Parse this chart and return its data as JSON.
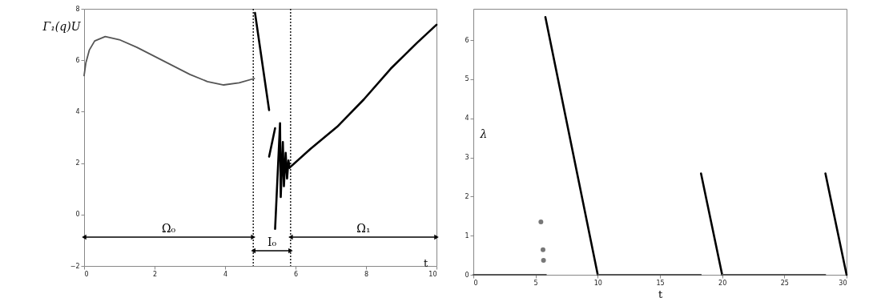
{
  "chart_data": [
    {
      "type": "line",
      "xlabel": "t",
      "ylabel": "Γ₁(q)U",
      "xlim": [
        0,
        10
      ],
      "ylim": [
        -2,
        8
      ],
      "xticks": [
        0,
        2,
        4,
        6,
        8,
        10
      ],
      "yticks": [
        -2,
        0,
        2,
        4,
        6,
        8
      ],
      "line_style": "solid",
      "series": [
        {
          "color": "#555555",
          "x": [
            0,
            0.05,
            0.15,
            0.3,
            0.6,
            1,
            1.5,
            2,
            2.5,
            3,
            3.5,
            3.96,
            4.4,
            4.83
          ],
          "values": [
            5.4,
            5.9,
            6.4,
            6.75,
            6.92,
            6.8,
            6.5,
            6.15,
            5.8,
            5.45,
            5.17,
            5.04,
            5.12,
            5.29
          ]
        },
        {
          "color": "#000000",
          "x": [
            4.85,
            5.25
          ],
          "values": [
            7.84,
            4.06
          ]
        },
        {
          "color": "#000000",
          "x": [
            5.25,
            5.42
          ],
          "values": [
            2.25,
            3.36
          ]
        },
        {
          "color": "#000000",
          "x": [
            5.42,
            5.56,
            5.58,
            5.64,
            5.67,
            5.72,
            5.76,
            5.8,
            5.83
          ],
          "values": [
            -0.56,
            3.55,
            0.68,
            2.82,
            1.1,
            2.4,
            1.4,
            2.1,
            1.82
          ]
        },
        {
          "color": "#000000",
          "x": [
            5.83,
            6.42,
            7.18,
            7.94,
            8.7,
            9.45,
            10
          ],
          "values": [
            1.82,
            2.55,
            3.41,
            4.48,
            5.67,
            6.68,
            7.38
          ]
        }
      ],
      "ref_lines": [
        {
          "axis": "x",
          "value": 4.8,
          "line_style": "dotted",
          "color": "#000000"
        },
        {
          "axis": "x",
          "value": 5.86,
          "line_style": "dotted",
          "color": "#000000"
        }
      ],
      "annotations": [
        "Ω₀",
        "I₀",
        "Ω₁"
      ]
    },
    {
      "type": "line",
      "xlabel": "t",
      "ylabel": "λ",
      "xlim": [
        0,
        30
      ],
      "ylim": [
        0,
        6.8
      ],
      "xticks": [
        0,
        5,
        10,
        15,
        20,
        25,
        30
      ],
      "yticks": [
        0,
        1,
        2,
        3,
        4,
        5,
        6
      ],
      "line_style": "solid",
      "series": [
        {
          "color": "#555555",
          "x": [
            0,
            5.85
          ],
          "values": [
            0,
            0
          ]
        },
        {
          "color": "#000000",
          "x": [
            5.79,
            10
          ],
          "values": [
            6.59,
            0
          ]
        },
        {
          "color": "#555555",
          "x": [
            10,
            18.3
          ],
          "values": [
            0,
            0
          ]
        },
        {
          "color": "#000000",
          "x": [
            18.3,
            20
          ],
          "values": [
            2.59,
            0
          ]
        },
        {
          "color": "#555555",
          "x": [
            20,
            28.3
          ],
          "values": [
            0,
            0
          ]
        },
        {
          "color": "#000000",
          "x": [
            28.3,
            30
          ],
          "values": [
            2.59,
            0
          ]
        },
        {
          "type": "scatter",
          "marker": "circle",
          "color": "#777777",
          "x": [
            5.43,
            5.6,
            5.64
          ],
          "values": [
            1.35,
            0.64,
            0.37
          ]
        }
      ]
    }
  ]
}
